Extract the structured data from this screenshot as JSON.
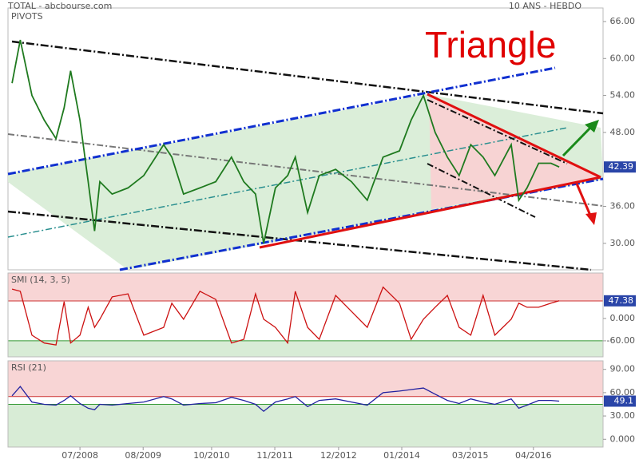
{
  "chart_data": [
    {
      "type": "line",
      "title": "TOTAL - abcbourse.com",
      "subtitle": "10 ANS - HEBDO",
      "label": "PIVOTS",
      "annotation": "Triangle",
      "x": [
        2007.34,
        2007.48,
        2007.68,
        2007.89,
        2008.09,
        2008.23,
        2008.34,
        2008.5,
        2008.64,
        2008.75,
        2008.84,
        2009.05,
        2009.32,
        2009.59,
        2009.93,
        2010.07,
        2010.27,
        2010.55,
        2010.82,
        2011.09,
        2011.3,
        2011.5,
        2011.64,
        2011.84,
        2012.05,
        2012.18,
        2012.39,
        2012.59,
        2012.87,
        2013.14,
        2013.41,
        2013.68,
        2013.96,
        2014.16,
        2014.37,
        2014.57,
        2014.78,
        2014.98,
        2015.18,
        2015.39,
        2015.59,
        2015.87,
        2016.0,
        2016.14,
        2016.34,
        2016.55,
        2016.69
      ],
      "series": [
        {
          "color": "#1f7a1f",
          "values": [
            56,
            63,
            54,
            50,
            47,
            52,
            58,
            50,
            40,
            32,
            40,
            38,
            39,
            41,
            46,
            44,
            38,
            39,
            40,
            44,
            40,
            38,
            30,
            39,
            41,
            44,
            35,
            41,
            42,
            40,
            37,
            44,
            45,
            50,
            54,
            48,
            44,
            41,
            46,
            44,
            41,
            46,
            37,
            39,
            43,
            43,
            42.39
          ]
        }
      ],
      "last_value": 42.39,
      "xlim": [
        2007.27,
        2017.44
      ],
      "ylim": [
        25.7,
        68.2
      ],
      "yticks": [
        {
          "value": 66,
          "label": "66.00"
        },
        {
          "value": 60,
          "label": "60.00"
        },
        {
          "value": 54,
          "label": "54.00"
        },
        {
          "value": 48,
          "label": "48.00"
        },
        {
          "value": 36,
          "label": "36.00"
        },
        {
          "value": 30,
          "label": "30.00"
        }
      ]
    },
    {
      "type": "line",
      "title": "SMI (14, 3, 5)",
      "x": [
        2007.34,
        2007.48,
        2007.68,
        2007.89,
        2008.09,
        2008.23,
        2008.34,
        2008.5,
        2008.64,
        2008.75,
        2008.84,
        2009.05,
        2009.32,
        2009.59,
        2009.93,
        2010.07,
        2010.27,
        2010.55,
        2010.82,
        2011.09,
        2011.3,
        2011.5,
        2011.64,
        2011.84,
        2012.05,
        2012.18,
        2012.39,
        2012.59,
        2012.87,
        2013.14,
        2013.41,
        2013.68,
        2013.96,
        2014.16,
        2014.37,
        2014.57,
        2014.78,
        2014.98,
        2015.18,
        2015.39,
        2015.59,
        2015.87,
        2016.0,
        2016.14,
        2016.34,
        2016.55,
        2016.69
      ],
      "series": [
        {
          "color": "#cc1111",
          "values": [
            79,
            73,
            -45,
            -66,
            -71,
            45,
            -66,
            -45,
            30,
            -24,
            -2,
            58,
            66,
            -45,
            -24,
            41,
            -2,
            73,
            51,
            -66,
            -56,
            66,
            -2,
            -24,
            -66,
            73,
            -24,
            -56,
            62,
            19,
            -24,
            84,
            41,
            -56,
            -2,
            30,
            62,
            -24,
            -45,
            62,
            -45,
            -2,
            41,
            30,
            30,
            41,
            47.38
          ]
        }
      ],
      "last_value": 47.38,
      "levels": [
        47,
        -60
      ],
      "xlim": [
        2007.27,
        2017.44
      ],
      "ylim": [
        -103,
        122
      ],
      "yticks": [
        {
          "value": 0,
          "label": "0.000"
        },
        {
          "value": -60,
          "label": "-60.00"
        }
      ]
    },
    {
      "type": "line",
      "title": "RSI (21)",
      "x": [
        2007.34,
        2007.48,
        2007.68,
        2007.89,
        2008.09,
        2008.23,
        2008.34,
        2008.5,
        2008.64,
        2008.75,
        2008.84,
        2009.05,
        2009.32,
        2009.59,
        2009.93,
        2010.07,
        2010.27,
        2010.55,
        2010.82,
        2011.09,
        2011.3,
        2011.5,
        2011.64,
        2011.84,
        2012.05,
        2012.18,
        2012.39,
        2012.59,
        2012.87,
        2013.14,
        2013.41,
        2013.68,
        2013.96,
        2014.16,
        2014.37,
        2014.57,
        2014.78,
        2014.98,
        2015.18,
        2015.39,
        2015.59,
        2015.87,
        2016.0,
        2016.14,
        2016.34,
        2016.55,
        2016.69
      ],
      "series": [
        {
          "color": "#2020a0",
          "values": [
            56,
            68,
            48,
            45,
            44,
            50,
            56,
            46,
            40,
            38,
            45,
            44,
            46,
            48,
            55,
            52,
            44,
            46,
            47,
            54,
            50,
            45,
            36,
            48,
            52,
            55,
            42,
            50,
            52,
            48,
            44,
            60,
            62,
            64,
            66,
            58,
            50,
            46,
            52,
            48,
            45,
            52,
            40,
            44,
            50,
            50,
            49.1
          ]
        }
      ],
      "last_value": 49.1,
      "levels": [
        55,
        45
      ],
      "xlim": [
        2007.27,
        2017.44
      ],
      "ylim": [
        -10,
        101
      ],
      "yticks": [
        {
          "value": 90,
          "label": "90.00"
        },
        {
          "value": 60,
          "label": "60.00"
        },
        {
          "value": 30,
          "label": "30.00"
        },
        {
          "value": 0,
          "label": "0.000"
        }
      ],
      "xticks": [
        {
          "value": 2008.5,
          "label": "07/2008"
        },
        {
          "value": 2009.58,
          "label": "08/2009"
        },
        {
          "value": 2010.75,
          "label": "10/2010"
        },
        {
          "value": 2011.83,
          "label": "11/2011"
        },
        {
          "value": 2012.92,
          "label": "12/2012"
        },
        {
          "value": 2014.0,
          "label": "01/2014"
        },
        {
          "value": 2015.17,
          "label": "03/2015"
        },
        {
          "value": 2016.25,
          "label": "04/2016"
        }
      ]
    }
  ]
}
